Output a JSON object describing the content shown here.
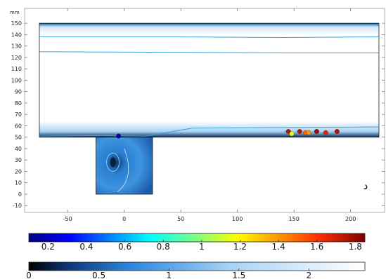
{
  "chart_data": {
    "type": "heatmap",
    "unit_label": "mm",
    "panel_label": "د",
    "xlim": [
      -88,
      230
    ],
    "ylim": [
      -16,
      163
    ],
    "x_ticks": [
      "-50",
      "0",
      "50",
      "100",
      "150",
      "200"
    ],
    "x_tick_values": [
      -50,
      0,
      50,
      100,
      150,
      200
    ],
    "y_ticks": [
      "150",
      "140",
      "130",
      "120",
      "110",
      "100",
      "90",
      "80",
      "70",
      "60",
      "50",
      "40",
      "30",
      "20",
      "10",
      "0",
      "-10"
    ],
    "y_tick_values": [
      150,
      140,
      130,
      120,
      110,
      100,
      90,
      80,
      70,
      60,
      50,
      40,
      30,
      20,
      10,
      0,
      -10
    ],
    "channel": {
      "x": [
        -75,
        225
      ],
      "y": [
        50,
        150
      ]
    },
    "cavity": {
      "x": [
        -25,
        25
      ],
      "y": [
        0,
        50
      ]
    },
    "streamlines": [
      {
        "x": [
          -75,
          0,
          120,
          225
        ],
        "y": [
          149,
          149,
          149,
          149
        ]
      },
      {
        "x": [
          -75,
          40,
          140,
          225
        ],
        "y": [
          138,
          138,
          137.5,
          138
        ]
      },
      {
        "x": [
          -75,
          40,
          140,
          225
        ],
        "y": [
          125,
          124.5,
          124,
          124
        ]
      },
      {
        "x": [
          -75,
          -20,
          20,
          60,
          225
        ],
        "y": [
          51,
          51.5,
          51,
          58,
          59
        ]
      }
    ],
    "particles": [
      {
        "x": -5,
        "y": 51,
        "v": 0.15
      },
      {
        "x": 145,
        "y": 55,
        "v": 1.75
      },
      {
        "x": 148,
        "y": 53,
        "v": 1.15
      },
      {
        "x": 155,
        "y": 55,
        "v": 1.75
      },
      {
        "x": 160,
        "y": 54,
        "v": 1.5
      },
      {
        "x": 163,
        "y": 54,
        "v": 1.4
      },
      {
        "x": 170,
        "y": 55,
        "v": 1.8
      },
      {
        "x": 178,
        "y": 54,
        "v": 1.65
      },
      {
        "x": 188,
        "y": 55,
        "v": 1.75
      }
    ],
    "colorbar_particles": {
      "ticks": [
        "0.2",
        "0.4",
        "0.6",
        "0.8",
        "1",
        "1.2",
        "1.4",
        "1.6",
        "1.8"
      ],
      "tick_values": [
        0.2,
        0.4,
        0.6,
        0.8,
        1,
        1.2,
        1.4,
        1.6,
        1.8
      ],
      "min": 0.1,
      "max": 1.85
    },
    "colorbar_field": {
      "ticks": [
        "0",
        "0.5",
        "1",
        "1.5",
        "2"
      ],
      "tick_values": [
        0,
        0.5,
        1,
        1.5,
        2
      ],
      "min": 0,
      "max": 2.4
    }
  }
}
